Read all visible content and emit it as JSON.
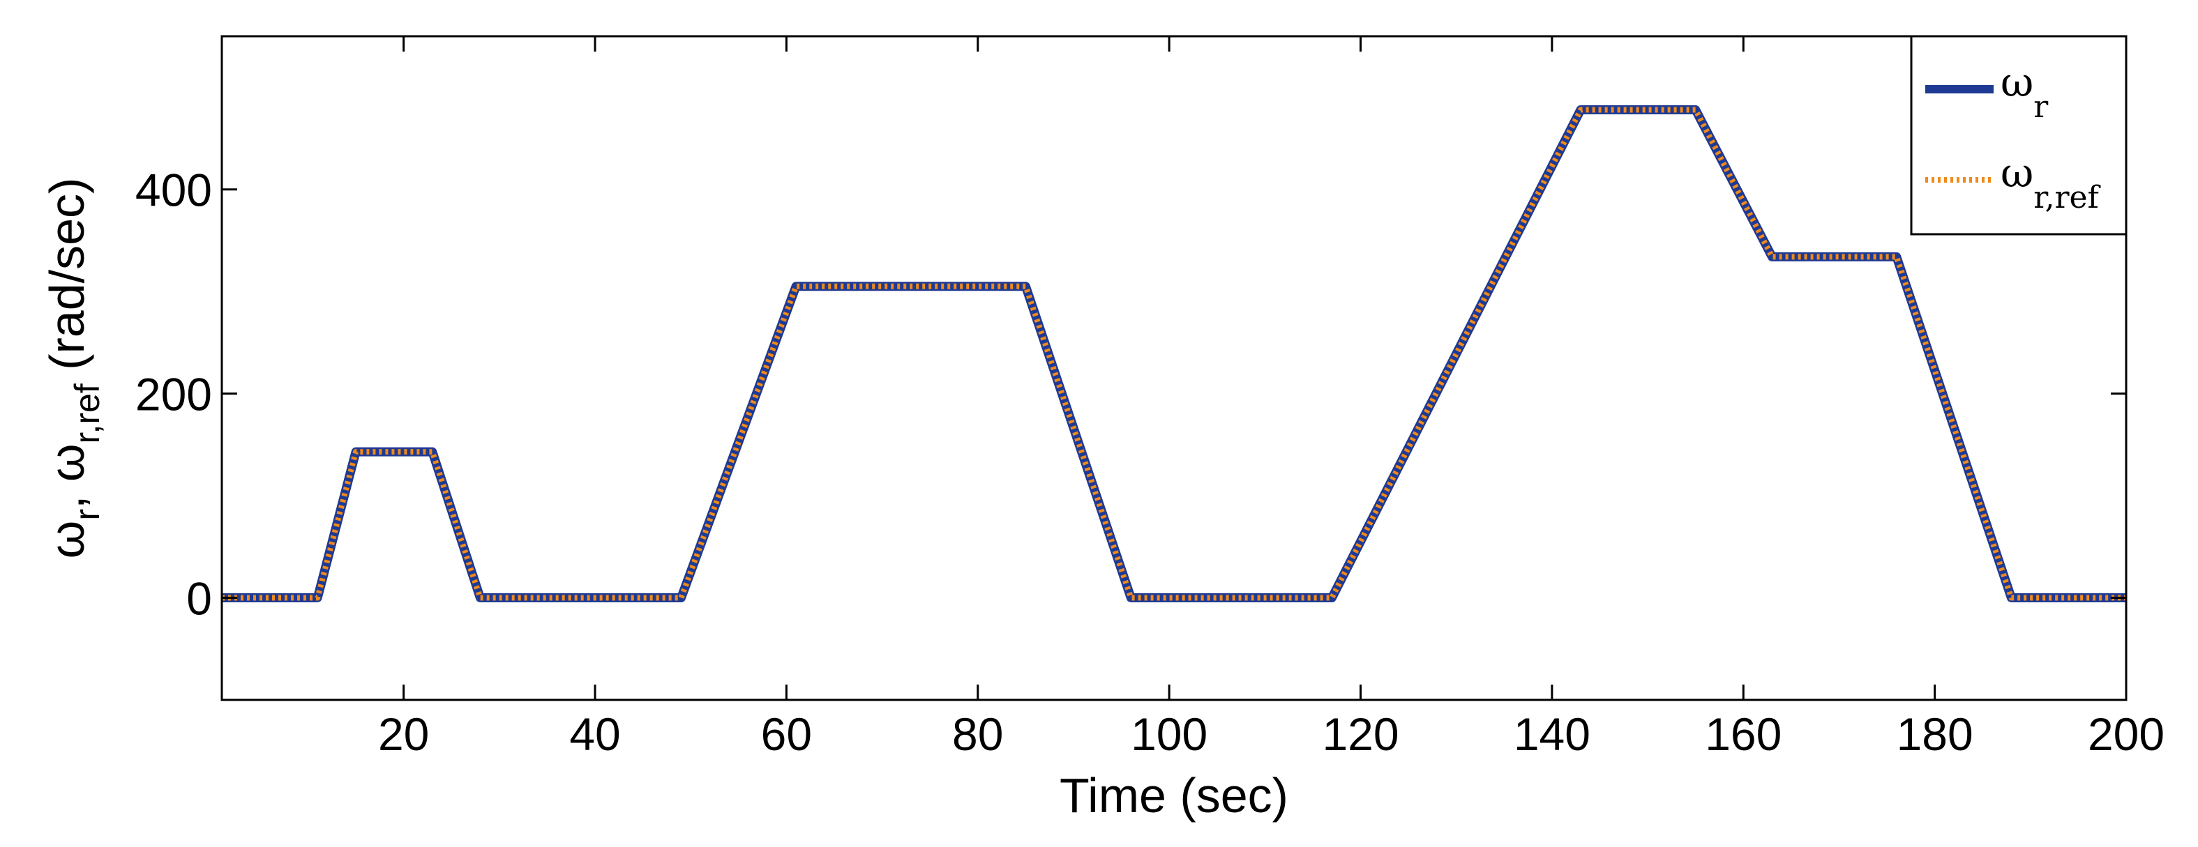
{
  "chart_data": {
    "type": "line",
    "xlabel": "Time (sec)",
    "ylabel": {
      "main": "ω",
      "sub1": "r",
      "sep": ", ω",
      "sub2": "r,ref",
      "unit": " (rad/sec)"
    },
    "xlim": [
      1,
      200
    ],
    "ylim": [
      -100,
      550
    ],
    "xticks": [
      20,
      40,
      60,
      80,
      100,
      120,
      140,
      160,
      180,
      200
    ],
    "yticks": [
      0,
      200,
      400
    ],
    "grid": false,
    "legend_position": "top-right",
    "series": [
      {
        "name": "ω_r",
        "legend_main": "ω",
        "legend_sub": "r",
        "color": "#1f3a93",
        "style": "solid",
        "x": [
          1,
          11,
          15,
          23,
          28,
          49,
          61,
          85,
          96,
          117,
          143,
          155,
          163,
          176,
          188,
          200
        ],
        "y": [
          0,
          0,
          143,
          143,
          0,
          0,
          305,
          305,
          0,
          0,
          478,
          478,
          334,
          334,
          0,
          0
        ]
      },
      {
        "name": "ω_r,ref",
        "legend_main": "ω",
        "legend_sub": "r,ref",
        "color": "#f08a1a",
        "style": "dotted",
        "x": [
          1,
          11,
          15,
          23,
          28,
          49,
          61,
          85,
          96,
          117,
          143,
          155,
          163,
          176,
          188,
          200
        ],
        "y": [
          0,
          0,
          143,
          143,
          0,
          0,
          305,
          305,
          0,
          0,
          478,
          478,
          334,
          334,
          0,
          0
        ]
      }
    ]
  }
}
